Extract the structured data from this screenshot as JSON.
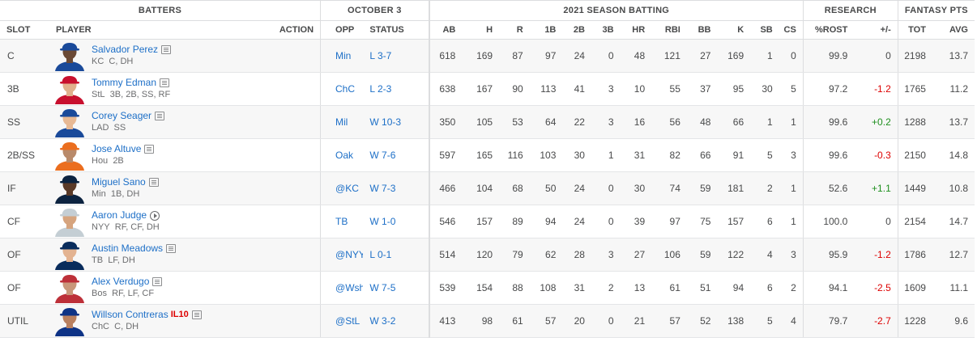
{
  "groups": {
    "batters": "BATTERS",
    "date": "OCTOBER 3",
    "season": "2021 SEASON BATTING",
    "research": "RESEARCH",
    "fantasy": "FANTASY PTS"
  },
  "columns": {
    "slot": "SLOT",
    "player": "PLAYER",
    "action": "ACTION",
    "opp": "OPP",
    "status": "STATUS",
    "stats": [
      "AB",
      "H",
      "R",
      "1B",
      "2B",
      "3B",
      "HR",
      "RBI",
      "BB",
      "K",
      "SB",
      "CS"
    ],
    "rost": "%ROST",
    "plusminus": "+/-",
    "tot": "TOT",
    "avg": "AVG"
  },
  "colors": {
    "link": "#1d6fc7",
    "positive": "#1e8f1e",
    "negative": "#dd0000"
  },
  "players": [
    {
      "slot": "C",
      "name": "Salvador Perez",
      "team": "KC",
      "pos": "C, DH",
      "icon": "news-icon",
      "opp": "Min",
      "result": "L 3-7",
      "stats": [
        618,
        169,
        87,
        97,
        24,
        0,
        48,
        121,
        27,
        169,
        1,
        0
      ],
      "rost": "99.9",
      "change": "0",
      "tot": "2198",
      "avg": "13.7",
      "jersey": "#1a4a9a",
      "skin": "#6b4a36"
    },
    {
      "slot": "3B",
      "name": "Tommy Edman",
      "team": "StL",
      "pos": "3B, 2B, SS, RF",
      "icon": "news-icon",
      "opp": "ChC",
      "result": "L 2-3",
      "stats": [
        638,
        167,
        90,
        113,
        41,
        3,
        10,
        55,
        37,
        95,
        30,
        5
      ],
      "rost": "97.2",
      "change": "-1.2",
      "tot": "1765",
      "avg": "11.2",
      "jersey": "#c8102e",
      "skin": "#e1b08c"
    },
    {
      "slot": "SS",
      "name": "Corey Seager",
      "team": "LAD",
      "pos": "SS",
      "icon": "news-icon",
      "opp": "Mil",
      "result": "W 10-3",
      "stats": [
        350,
        105,
        53,
        64,
        22,
        3,
        16,
        56,
        48,
        66,
        1,
        1
      ],
      "rost": "99.6",
      "change": "+0.2",
      "tot": "1288",
      "avg": "13.7",
      "jersey": "#1a4a9a",
      "skin": "#e8b994"
    },
    {
      "slot": "2B/SS",
      "name": "Jose Altuve",
      "team": "Hou",
      "pos": "2B",
      "icon": "news-icon",
      "opp": "Oak",
      "result": "W 7-6",
      "stats": [
        597,
        165,
        116,
        103,
        30,
        1,
        31,
        82,
        66,
        91,
        5,
        3
      ],
      "rost": "99.6",
      "change": "-0.3",
      "tot": "2150",
      "avg": "14.8",
      "jersey": "#eb6e1f",
      "skin": "#b98a6a"
    },
    {
      "slot": "IF",
      "name": "Miguel Sano",
      "team": "Min",
      "pos": "1B, DH",
      "icon": "news-icon",
      "opp": "@KC",
      "result": "W 7-3",
      "stats": [
        466,
        104,
        68,
        50,
        24,
        0,
        30,
        74,
        59,
        181,
        2,
        1
      ],
      "rost": "52.6",
      "change": "+1.1",
      "tot": "1449",
      "avg": "10.8",
      "jersey": "#0c2340",
      "skin": "#5a3a28"
    },
    {
      "slot": "CF",
      "name": "Aaron Judge",
      "team": "NYY",
      "pos": "RF, CF, DH",
      "icon": "play-icon",
      "opp": "TB",
      "result": "W 1-0",
      "stats": [
        546,
        157,
        89,
        94,
        24,
        0,
        39,
        97,
        75,
        157,
        6,
        1
      ],
      "rost": "100.0",
      "change": "0",
      "tot": "2154",
      "avg": "14.7",
      "jersey": "#c4ced4",
      "skin": "#d6a47e"
    },
    {
      "slot": "OF",
      "name": "Austin Meadows",
      "team": "TB",
      "pos": "LF, DH",
      "icon": "news-icon",
      "opp": "@NYY",
      "result": "L 0-1",
      "stats": [
        514,
        120,
        79,
        62,
        28,
        3,
        27,
        106,
        59,
        122,
        4,
        3
      ],
      "rost": "95.9",
      "change": "-1.2",
      "tot": "1786",
      "avg": "12.7",
      "jersey": "#092c5c",
      "skin": "#e3b391"
    },
    {
      "slot": "OF",
      "name": "Alex Verdugo",
      "team": "Bos",
      "pos": "RF, LF, CF",
      "icon": "news-icon",
      "opp": "@Wsh",
      "result": "W 7-5",
      "stats": [
        539,
        154,
        88,
        108,
        31,
        2,
        13,
        61,
        51,
        94,
        6,
        2
      ],
      "rost": "94.1",
      "change": "-2.5",
      "tot": "1609",
      "avg": "11.1",
      "jersey": "#bd3039",
      "skin": "#c9977a"
    },
    {
      "slot": "UTIL",
      "name": "Willson Contreras",
      "team": "ChC",
      "pos": "C, DH",
      "injury": "IL10",
      "icon": "news-icon",
      "opp": "@StL",
      "result": "W 3-2",
      "stats": [
        413,
        98,
        61,
        57,
        20,
        0,
        21,
        57,
        52,
        138,
        5,
        4
      ],
      "rost": "79.7",
      "change": "-2.7",
      "tot": "1228",
      "avg": "9.6",
      "jersey": "#0e3386",
      "skin": "#b98060"
    }
  ]
}
